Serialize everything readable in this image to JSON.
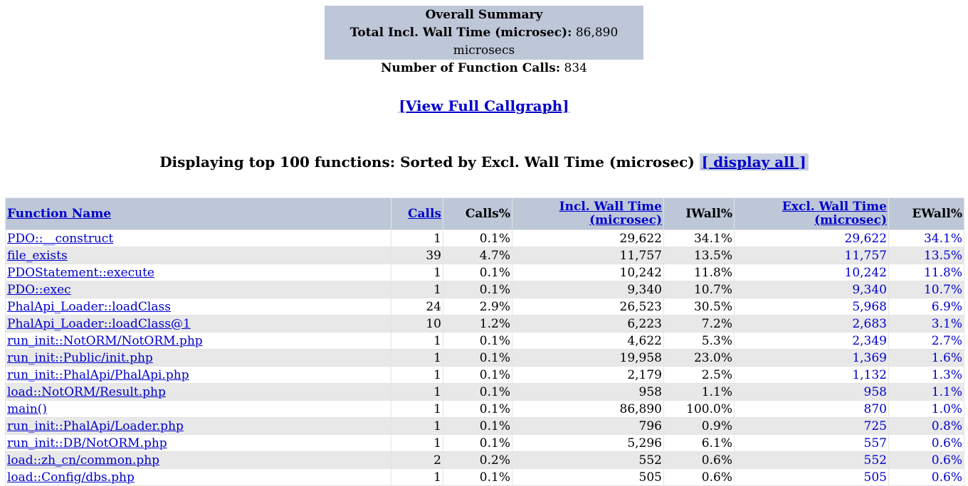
{
  "summary": {
    "title": "Overall Summary",
    "wall_label": "Total Incl. Wall Time (microsec):",
    "wall_value": "86,890 microsecs",
    "calls_label": "Number of Function Calls:",
    "calls_value": "834"
  },
  "callgraph_link": "[View Full Callgraph]",
  "heading": {
    "text": "Displaying top 100 functions: Sorted by Excl. Wall Time (microsec)",
    "display_all": "[ display all ]"
  },
  "table": {
    "headers": {
      "function_name": "Function Name",
      "calls": "Calls",
      "calls_pct": "Calls%",
      "incl_wall_line1": "Incl. Wall Time",
      "incl_wall_line2": "(microsec)",
      "iwall_pct": "IWall%",
      "excl_wall_line1": "Excl. Wall Time",
      "excl_wall_line2": "(microsec)",
      "ewall_pct": "EWall%"
    },
    "rows": [
      {
        "name": "PDO::__construct",
        "calls": "1",
        "calls_pct": "0.1%",
        "incl": "29,622",
        "iwall": "34.1%",
        "excl": "29,622",
        "ewall": "34.1%"
      },
      {
        "name": "file_exists",
        "calls": "39",
        "calls_pct": "4.7%",
        "incl": "11,757",
        "iwall": "13.5%",
        "excl": "11,757",
        "ewall": "13.5%"
      },
      {
        "name": "PDOStatement::execute",
        "calls": "1",
        "calls_pct": "0.1%",
        "incl": "10,242",
        "iwall": "11.8%",
        "excl": "10,242",
        "ewall": "11.8%"
      },
      {
        "name": "PDO::exec",
        "calls": "1",
        "calls_pct": "0.1%",
        "incl": "9,340",
        "iwall": "10.7%",
        "excl": "9,340",
        "ewall": "10.7%"
      },
      {
        "name": "PhalApi_Loader::loadClass",
        "calls": "24",
        "calls_pct": "2.9%",
        "incl": "26,523",
        "iwall": "30.5%",
        "excl": "5,968",
        "ewall": "6.9%"
      },
      {
        "name": "PhalApi_Loader::loadClass@1",
        "calls": "10",
        "calls_pct": "1.2%",
        "incl": "6,223",
        "iwall": "7.2%",
        "excl": "2,683",
        "ewall": "3.1%"
      },
      {
        "name": "run_init::NotORM/NotORM.php",
        "calls": "1",
        "calls_pct": "0.1%",
        "incl": "4,622",
        "iwall": "5.3%",
        "excl": "2,349",
        "ewall": "2.7%"
      },
      {
        "name": "run_init::Public/init.php",
        "calls": "1",
        "calls_pct": "0.1%",
        "incl": "19,958",
        "iwall": "23.0%",
        "excl": "1,369",
        "ewall": "1.6%"
      },
      {
        "name": "run_init::PhalApi/PhalApi.php",
        "calls": "1",
        "calls_pct": "0.1%",
        "incl": "2,179",
        "iwall": "2.5%",
        "excl": "1,132",
        "ewall": "1.3%"
      },
      {
        "name": "load::NotORM/Result.php",
        "calls": "1",
        "calls_pct": "0.1%",
        "incl": "958",
        "iwall": "1.1%",
        "excl": "958",
        "ewall": "1.1%"
      },
      {
        "name": "main()",
        "calls": "1",
        "calls_pct": "0.1%",
        "incl": "86,890",
        "iwall": "100.0%",
        "excl": "870",
        "ewall": "1.0%"
      },
      {
        "name": "run_init::PhalApi/Loader.php",
        "calls": "1",
        "calls_pct": "0.1%",
        "incl": "796",
        "iwall": "0.9%",
        "excl": "725",
        "ewall": "0.8%"
      },
      {
        "name": "run_init::DB/NotORM.php",
        "calls": "1",
        "calls_pct": "0.1%",
        "incl": "5,296",
        "iwall": "6.1%",
        "excl": "557",
        "ewall": "0.6%"
      },
      {
        "name": "load::zh_cn/common.php",
        "calls": "2",
        "calls_pct": "0.2%",
        "incl": "552",
        "iwall": "0.6%",
        "excl": "552",
        "ewall": "0.6%"
      },
      {
        "name": "load::Config/dbs.php",
        "calls": "1",
        "calls_pct": "0.1%",
        "incl": "505",
        "iwall": "0.6%",
        "excl": "505",
        "ewall": "0.6%"
      }
    ]
  }
}
